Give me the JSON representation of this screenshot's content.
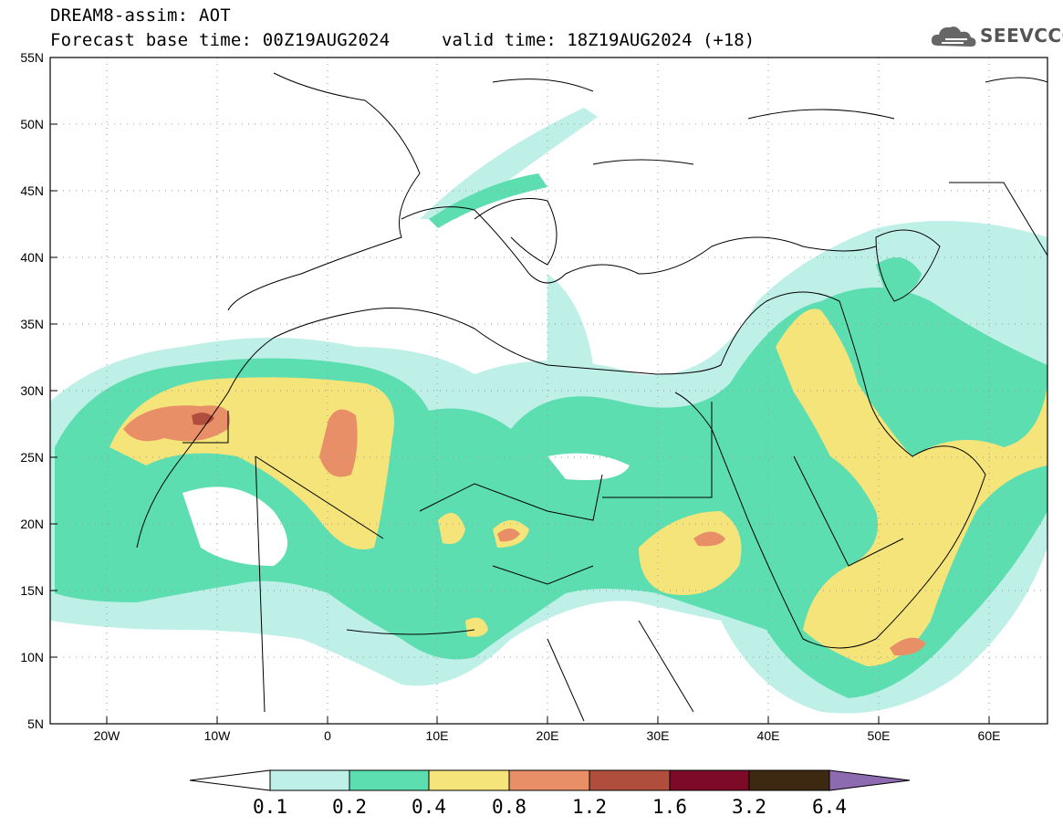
{
  "header": {
    "title": "DREAM8-assim: AOT",
    "base_time": "Forecast base time: 00Z19AUG2024",
    "valid_time": "valid time: 18Z19AUG2024 (+18)"
  },
  "logo": {
    "text": "SEEVCCC",
    "icon": "cloud-icon"
  },
  "axes": {
    "lat_labels": [
      "55N",
      "50N",
      "45N",
      "40N",
      "35N",
      "30N",
      "25N",
      "20N",
      "15N",
      "10N",
      "5N"
    ],
    "lon_labels": [
      "20W",
      "10W",
      "0",
      "10E",
      "20E",
      "30E",
      "40E",
      "50E",
      "60E"
    ],
    "lat_range": [
      5,
      55
    ],
    "lon_range": [
      -25,
      65
    ]
  },
  "colorbar": {
    "ticks": [
      "0.1",
      "0.2",
      "0.4",
      "0.8",
      "1.2",
      "1.6",
      "3.2",
      "6.4"
    ],
    "colors": [
      "#ffffff",
      "#bff0e8",
      "#5cdeb0",
      "#f5e47a",
      "#e98f68",
      "#b04e3d",
      "#7d0a26",
      "#3d2812",
      "#8e6ab0"
    ]
  }
}
